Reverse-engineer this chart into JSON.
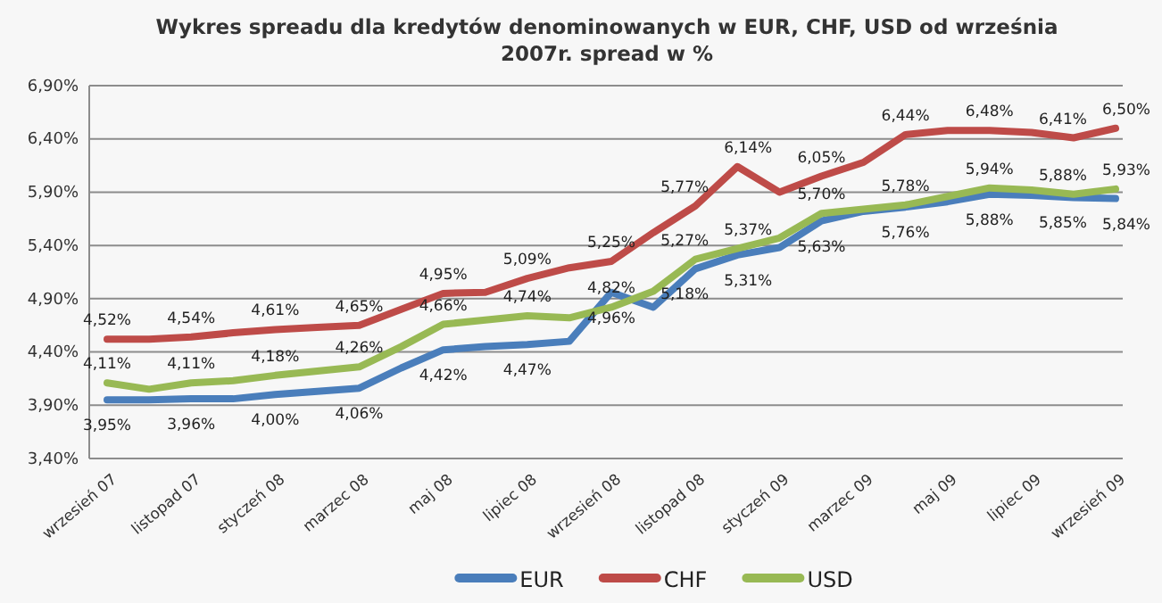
{
  "chart_data": {
    "type": "line",
    "title": "Wykres spreadu dla kredytów denominowanych w EUR, CHF, USD od września 2007r. spread w %",
    "categories": [
      "wrzesień 07",
      null,
      "listopad 07",
      null,
      "styczeń 08",
      null,
      "marzec 08",
      null,
      "maj 08",
      null,
      "lipiec 08",
      null,
      "wrzesień 08",
      null,
      "listopad 08",
      null,
      "styczeń 09",
      null,
      "marzec 09",
      null,
      "maj 09",
      null,
      "lipiec 09",
      null,
      "wrzesień 09"
    ],
    "series": [
      {
        "name": "EUR",
        "color": "#4a7ebb",
        "values": [
          3.95,
          3.95,
          3.96,
          3.96,
          4.0,
          4.03,
          4.06,
          4.25,
          4.42,
          4.45,
          4.47,
          4.5,
          4.96,
          4.82,
          5.18,
          5.31,
          5.38,
          5.63,
          5.72,
          5.76,
          5.81,
          5.88,
          5.87,
          5.85,
          5.84
        ],
        "value_labels": [
          "3,95%",
          null,
          "3,96%",
          null,
          "4,00%",
          null,
          "4,06%",
          null,
          "4,42%",
          null,
          "4,47%",
          null,
          "4,96%",
          null,
          "5,18%",
          "5,31%",
          null,
          "5,63%",
          null,
          "5,76%",
          null,
          "5,88%",
          null,
          "5,85%",
          "5,84%"
        ]
      },
      {
        "name": "CHF",
        "color": "#be4b48",
        "values": [
          4.52,
          4.52,
          4.54,
          4.58,
          4.61,
          4.63,
          4.65,
          4.8,
          4.95,
          4.96,
          5.09,
          5.19,
          5.25,
          5.52,
          5.77,
          6.14,
          5.9,
          6.05,
          6.18,
          6.44,
          6.48,
          6.48,
          6.46,
          6.41,
          6.5
        ],
        "value_labels": [
          "4,52%",
          null,
          "4,54%",
          null,
          "4,61%",
          null,
          "4,65%",
          null,
          "4,95%",
          null,
          "5,09%",
          null,
          "5,25%",
          null,
          "5,77%",
          "6,14%",
          null,
          "6,05%",
          null,
          "6,44%",
          null,
          "6,48%",
          null,
          "6,41%",
          "6,50%"
        ]
      },
      {
        "name": "USD",
        "color": "#98b954",
        "values": [
          4.11,
          4.05,
          4.11,
          4.13,
          4.18,
          4.22,
          4.26,
          4.45,
          4.66,
          4.7,
          4.74,
          4.72,
          4.82,
          4.97,
          5.27,
          5.37,
          5.47,
          5.7,
          5.74,
          5.78,
          5.86,
          5.94,
          5.92,
          5.88,
          5.93
        ],
        "value_labels": [
          "4,11%",
          null,
          "4,11%",
          null,
          "4,18%",
          null,
          "4,26%",
          null,
          "4,66%",
          null,
          "4,74%",
          null,
          "4,82%",
          null,
          "5,27%",
          "5,37%",
          null,
          "5,70%",
          null,
          "5,78%",
          null,
          "5,94%",
          null,
          "5,88%",
          "5,93%"
        ]
      }
    ],
    "ylim": [
      3.4,
      6.9
    ],
    "yticks": [
      {
        "value": 3.4,
        "label": "3,40%"
      },
      {
        "value": 3.9,
        "label": "3,90%"
      },
      {
        "value": 4.4,
        "label": "4,40%"
      },
      {
        "value": 4.9,
        "label": "4,90%"
      },
      {
        "value": 5.4,
        "label": "5,40%"
      },
      {
        "value": 5.9,
        "label": "5,90%"
      },
      {
        "value": 6.4,
        "label": "6,40%"
      },
      {
        "value": 6.9,
        "label": "6,90%"
      }
    ],
    "grid": "y",
    "legend": "bottom",
    "marker": "none",
    "line_style": "solid"
  }
}
